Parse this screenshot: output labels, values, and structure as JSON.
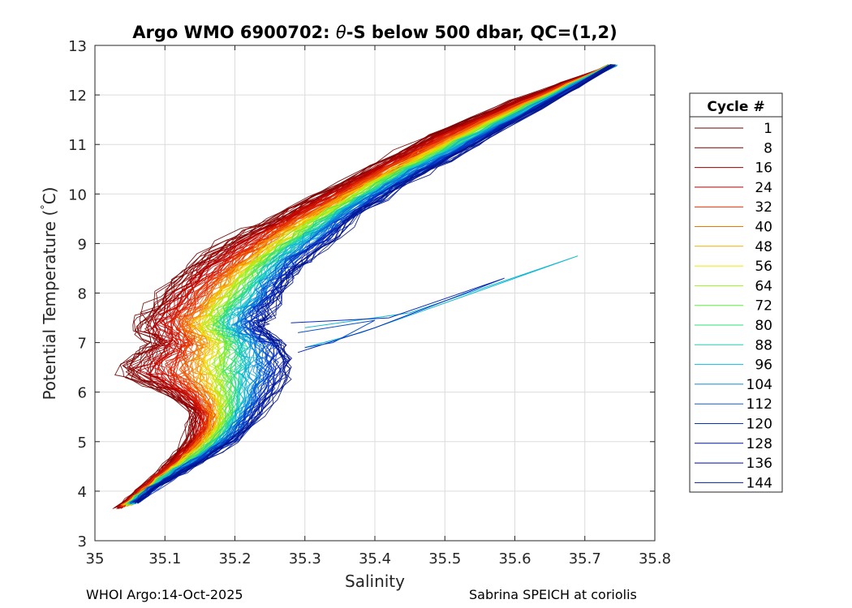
{
  "chart_data": {
    "type": "line",
    "title_parts": {
      "prefix": "Argo WMO 6900702: ",
      "theta": "θ",
      "suffix": "-S below 500 dbar,  QC=(1,2)"
    },
    "xlabel": "Salinity",
    "ylabel_parts": {
      "prefix": "Potential Temperature (",
      "degree": "°",
      "suffix": "C)"
    },
    "xlim": [
      35,
      35.8
    ],
    "ylim": [
      3,
      13
    ],
    "x_ticks": [
      35,
      35.1,
      35.2,
      35.3,
      35.4,
      35.5,
      35.6,
      35.7,
      35.8
    ],
    "x_tick_labels": [
      "35",
      "35.1",
      "35.2",
      "35.3",
      "35.4",
      "35.5",
      "35.6",
      "35.7",
      "35.8"
    ],
    "y_ticks": [
      3,
      4,
      5,
      6,
      7,
      8,
      9,
      10,
      11,
      12,
      13
    ],
    "y_tick_labels": [
      "3",
      "4",
      "5",
      "6",
      "7",
      "8",
      "9",
      "10",
      "11",
      "12",
      "13"
    ],
    "grid": true,
    "legend": {
      "title": "Cycle #",
      "placement": "outside-right",
      "entries": [
        "1",
        "8",
        "16",
        "24",
        "32",
        "40",
        "48",
        "56",
        "64",
        "72",
        "80",
        "88",
        "96",
        "104",
        "112",
        "120",
        "128",
        "136",
        "144"
      ],
      "colors": [
        "#6a0000",
        "#7c0000",
        "#950000",
        "#b40000",
        "#dc2800",
        "#ee7300",
        "#f2b000",
        "#f0e600",
        "#9df21c",
        "#5cef3c",
        "#2ee07a",
        "#20d0b0",
        "#10b8e0",
        "#0a8ad8",
        "#0860d0",
        "#0533c0",
        "#0015a0",
        "#000d80",
        "#00208e"
      ]
    },
    "series_note": "Each cycle is a theta-S profile from ~12.6 C near S=35.74 down to ~3.7 C near S=35.03-35.06; curves drift from warmer/fresher (early, red) toward saltier (late, blue)."
  },
  "footer": {
    "left": "WHOI Argo:14-Oct-2025",
    "right": "Sabrina SPEICH at coriolis"
  }
}
